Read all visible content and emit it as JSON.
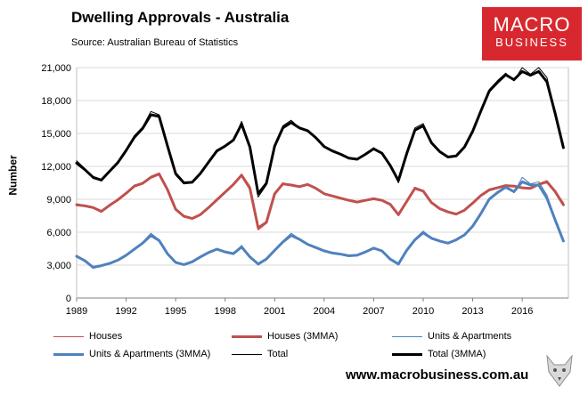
{
  "header": {
    "title": "Dwelling Approvals - Australia",
    "source": "Source:   Australian Bureau of Statistics"
  },
  "logo": {
    "line1": "MACRO",
    "line2": "BUSINESS",
    "color": "#d8282f"
  },
  "footer": {
    "url": "www.macrobusiness.com.au"
  },
  "chart_data": {
    "type": "line",
    "title": "Dwelling Approvals - Australia",
    "xlabel": "",
    "ylabel": "Number",
    "xlim": [
      1989,
      2018.8
    ],
    "ylim": [
      0,
      21000
    ],
    "yticks": [
      0,
      3000,
      6000,
      9000,
      12000,
      15000,
      18000,
      21000
    ],
    "ytick_labels": [
      "0",
      "3,000",
      "6,000",
      "9,000",
      "12,000",
      "15,000",
      "18,000",
      "21,000"
    ],
    "xticks": [
      1989,
      1992,
      1995,
      1998,
      2001,
      2004,
      2007,
      2010,
      2013,
      2016
    ],
    "xtick_labels": [
      "1989",
      "1992",
      "1995",
      "1998",
      "2001",
      "2004",
      "2007",
      "2010",
      "2013",
      "2016"
    ],
    "grid": "horizontal",
    "x": [
      1989.0,
      1989.5,
      1990.0,
      1990.5,
      1991.0,
      1991.5,
      1992.0,
      1992.5,
      1993.0,
      1993.5,
      1994.0,
      1994.5,
      1995.0,
      1995.5,
      1996.0,
      1996.5,
      1997.0,
      1997.5,
      1998.0,
      1998.5,
      1999.0,
      1999.5,
      2000.0,
      2000.5,
      2001.0,
      2001.5,
      2002.0,
      2002.5,
      2003.0,
      2003.5,
      2004.0,
      2004.5,
      2005.0,
      2005.5,
      2006.0,
      2006.5,
      2007.0,
      2007.5,
      2008.0,
      2008.5,
      2009.0,
      2009.5,
      2010.0,
      2010.5,
      2011.0,
      2011.5,
      2012.0,
      2012.5,
      2013.0,
      2013.5,
      2014.0,
      2014.5,
      2015.0,
      2015.5,
      2016.0,
      2016.5,
      2017.0,
      2017.5,
      2018.0,
      2018.5
    ],
    "series": [
      {
        "name": "Houses",
        "color": "#c0504d",
        "width": 1,
        "values": [
          8600,
          8400,
          8200,
          7800,
          8500,
          9000,
          9600,
          10300,
          10500,
          11100,
          11400,
          9800,
          8000,
          7400,
          7200,
          7600,
          8300,
          9000,
          9700,
          10400,
          11300,
          10200,
          6200,
          6800,
          9600,
          10500,
          10300,
          10100,
          10400,
          10000,
          9500,
          9300,
          9100,
          8900,
          8700,
          8900,
          9100,
          8900,
          8600,
          7500,
          8800,
          10100,
          9800,
          8700,
          8100,
          7800,
          7600,
          8000,
          8700,
          9400,
          9900,
          10100,
          10300,
          10200,
          10100,
          10000,
          10400,
          10700,
          9700,
          8700
        ]
      },
      {
        "name": "Houses (3MMA)",
        "color": "#c0504d",
        "width": 3,
        "values": [
          8500,
          8400,
          8250,
          7900,
          8450,
          8950,
          9550,
          10200,
          10450,
          11000,
          11300,
          9900,
          8100,
          7450,
          7250,
          7600,
          8250,
          8950,
          9650,
          10350,
          11200,
          10000,
          6400,
          6900,
          9500,
          10400,
          10300,
          10150,
          10350,
          10000,
          9500,
          9300,
          9100,
          8900,
          8750,
          8900,
          9050,
          8900,
          8550,
          7600,
          8800,
          10000,
          9750,
          8700,
          8150,
          7850,
          7650,
          8000,
          8650,
          9350,
          9850,
          10050,
          10250,
          10200,
          10050,
          10000,
          10350,
          10600,
          9700,
          8500
        ]
      },
      {
        "name": "Units & Apartments",
        "color": "#4f81bd",
        "width": 1,
        "values": [
          3900,
          3400,
          2700,
          2900,
          3100,
          3400,
          3900,
          4500,
          5100,
          5900,
          5300,
          4000,
          3200,
          3000,
          3300,
          3800,
          4200,
          4500,
          4200,
          4000,
          4800,
          3700,
          3000,
          3500,
          4400,
          5200,
          5900,
          5400,
          4900,
          4600,
          4300,
          4100,
          4000,
          3800,
          3900,
          4200,
          4600,
          4300,
          3500,
          3000,
          4400,
          5400,
          6100,
          5500,
          5200,
          5000,
          5300,
          5800,
          6600,
          7800,
          9100,
          9700,
          10200,
          9600,
          11000,
          10400,
          10600,
          9400,
          7200,
          5300
        ]
      },
      {
        "name": "Units & Apartments (3MMA)",
        "color": "#4f81bd",
        "width": 3,
        "values": [
          3800,
          3400,
          2800,
          2950,
          3150,
          3450,
          3900,
          4450,
          5000,
          5700,
          5250,
          4050,
          3250,
          3050,
          3300,
          3750,
          4150,
          4450,
          4200,
          4050,
          4650,
          3750,
          3100,
          3550,
          4350,
          5100,
          5700,
          5350,
          4900,
          4600,
          4300,
          4100,
          4000,
          3850,
          3900,
          4200,
          4550,
          4300,
          3550,
          3100,
          4350,
          5300,
          5950,
          5450,
          5200,
          5000,
          5300,
          5750,
          6550,
          7700,
          9000,
          9600,
          10100,
          9700,
          10600,
          10300,
          10300,
          9100,
          7100,
          5200
        ]
      },
      {
        "name": "Total",
        "color": "#000000",
        "width": 1,
        "values": [
          12500,
          11800,
          10900,
          10700,
          11600,
          12400,
          13500,
          14800,
          15600,
          17000,
          16700,
          13800,
          11200,
          10400,
          10500,
          11400,
          12500,
          13500,
          13900,
          14400,
          16100,
          13900,
          9200,
          10300,
          14000,
          15700,
          16200,
          15500,
          15300,
          14600,
          13800,
          13400,
          13100,
          12700,
          12600,
          13100,
          13700,
          13200,
          12100,
          10500,
          13200,
          15500,
          15900,
          14200,
          13300,
          12800,
          12900,
          13800,
          15300,
          17200,
          19000,
          19800,
          20500,
          19800,
          21000,
          20400,
          21000,
          20100,
          16900,
          14000
        ]
      },
      {
        "name": "Total (3MMA)",
        "color": "#000000",
        "width": 3,
        "values": [
          12300,
          11700,
          11000,
          10750,
          11550,
          12350,
          13450,
          14650,
          15450,
          16700,
          16550,
          13900,
          11350,
          10500,
          10550,
          11350,
          12400,
          13400,
          13850,
          14400,
          15850,
          13750,
          9500,
          10450,
          13850,
          15500,
          16000,
          15500,
          15250,
          14600,
          13800,
          13400,
          13100,
          12750,
          12650,
          13100,
          13600,
          13200,
          12100,
          10700,
          13150,
          15300,
          15700,
          14150,
          13350,
          12850,
          12950,
          13750,
          15200,
          17050,
          18850,
          19650,
          20350,
          19900,
          20650,
          20300,
          20650,
          19700,
          16800,
          13700
        ]
      }
    ]
  }
}
